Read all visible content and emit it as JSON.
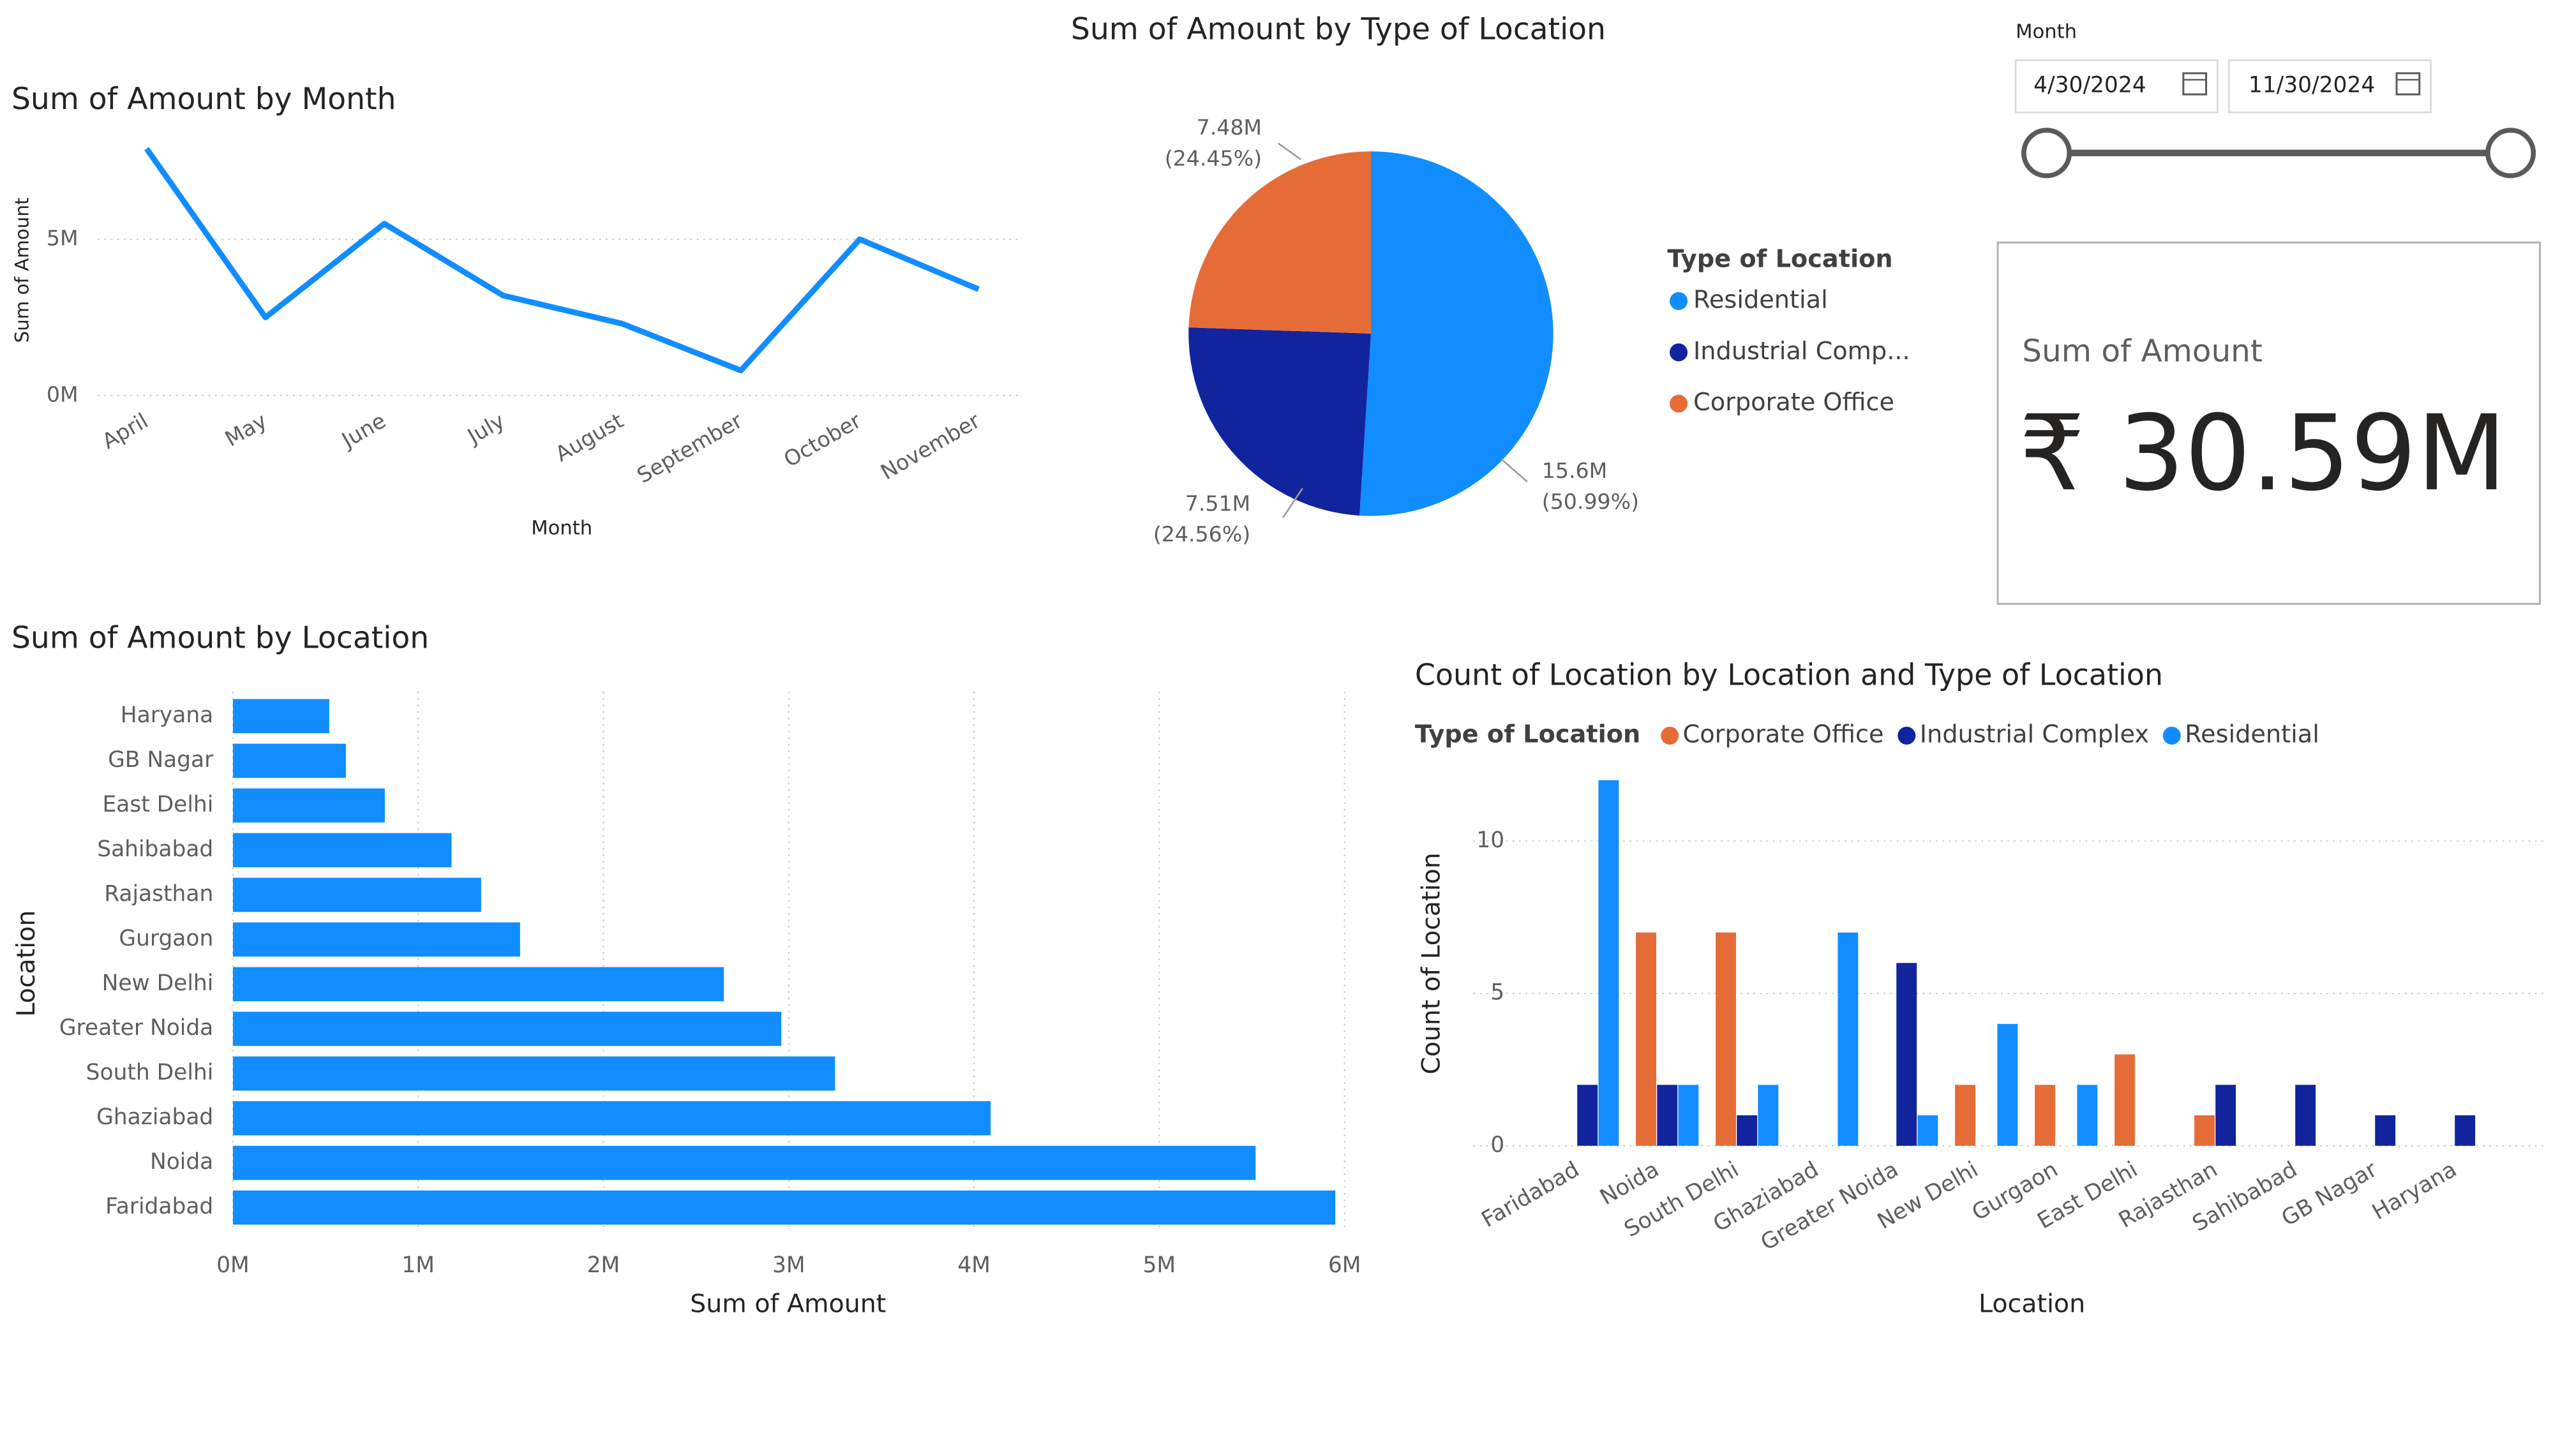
{
  "chart_data": [
    {
      "type": "line",
      "title": "Sum of Amount by Month",
      "x_label": "Month",
      "y_label": "Sum of Amount",
      "categories": [
        "April",
        "May",
        "June",
        "July",
        "August",
        "September",
        "October",
        "November"
      ],
      "values": [
        7.9,
        2.5,
        5.5,
        3.2,
        2.3,
        0.8,
        5.0,
        3.4
      ],
      "color": "#118dff",
      "ylim": [
        0,
        8.2
      ],
      "yticks": [
        {
          "value": 0,
          "label": "0M"
        },
        {
          "value": 5,
          "label": "5M"
        }
      ],
      "grid": true
    },
    {
      "type": "pie",
      "title": "Sum of Amount by Type of Location",
      "legend_title": "Type of Location",
      "categories": [
        "Residential",
        "Industrial Comp...",
        "Corporate Office"
      ],
      "values": [
        15.6,
        7.51,
        7.48
      ],
      "value_labels": [
        "15.6M",
        "7.51M",
        "7.48M"
      ],
      "percents": [
        50.99,
        24.56,
        24.45
      ],
      "percent_labels": [
        "(50.99%)",
        "(24.56%)",
        "(24.45%)"
      ],
      "colors": [
        "#118dff",
        "#12239e",
        "#e66c37"
      ]
    },
    {
      "type": "hbar",
      "title": "Sum of Amount by Location",
      "x_label": "Sum of Amount",
      "y_label": "Location",
      "categories": [
        "Haryana",
        "GB Nagar",
        "East Delhi",
        "Sahibabad",
        "Rajasthan",
        "Gurgaon",
        "New Delhi",
        "Greater Noida",
        "South Delhi",
        "Ghaziabad",
        "Noida",
        "Faridabad"
      ],
      "values": [
        0.52,
        0.61,
        0.82,
        1.18,
        1.34,
        1.55,
        2.65,
        2.96,
        3.25,
        4.09,
        5.52,
        5.95
      ],
      "color": "#118dff",
      "xlim": [
        0,
        6.06
      ],
      "xticks": [
        {
          "value": 0,
          "label": "0M"
        },
        {
          "value": 1,
          "label": "1M"
        },
        {
          "value": 2,
          "label": "2M"
        },
        {
          "value": 3,
          "label": "3M"
        },
        {
          "value": 4,
          "label": "4M"
        },
        {
          "value": 5,
          "label": "5M"
        },
        {
          "value": 6,
          "label": "6M"
        }
      ],
      "grid": true
    },
    {
      "type": "grouped_bar",
      "title": "Count of Location by Location and Type of Location",
      "legend_title": "Type of Location",
      "x_label": "Location",
      "y_label": "Count of Location",
      "categories": [
        "Faridabad",
        "Noida",
        "South Delhi",
        "Ghaziabad",
        "Greater Noida",
        "New Delhi",
        "Gurgaon",
        "East Delhi",
        "Rajasthan",
        "Sahibabad",
        "GB Nagar",
        "Haryana"
      ],
      "series": [
        {
          "name": "Corporate Office",
          "color": "#e66c37",
          "values": [
            null,
            7,
            7,
            null,
            null,
            2,
            2,
            3,
            1,
            null,
            null,
            null
          ]
        },
        {
          "name": "Industrial Complex",
          "color": "#12239e",
          "values": [
            2,
            2,
            1,
            null,
            6,
            null,
            null,
            null,
            2,
            2,
            1,
            1
          ]
        },
        {
          "name": "Residential",
          "color": "#118dff",
          "values": [
            12,
            2,
            2,
            7,
            1,
            4,
            2,
            null,
            null,
            null,
            null,
            null
          ]
        }
      ],
      "ylim": [
        0,
        12.5
      ],
      "yticks": [
        0,
        5,
        10
      ],
      "grid": true
    }
  ],
  "slicer": {
    "title": "Month",
    "start": "4/30/2024",
    "end": "11/30/2024"
  },
  "card": {
    "label": "Sum of Amount",
    "value": "₹ 30.59M"
  }
}
